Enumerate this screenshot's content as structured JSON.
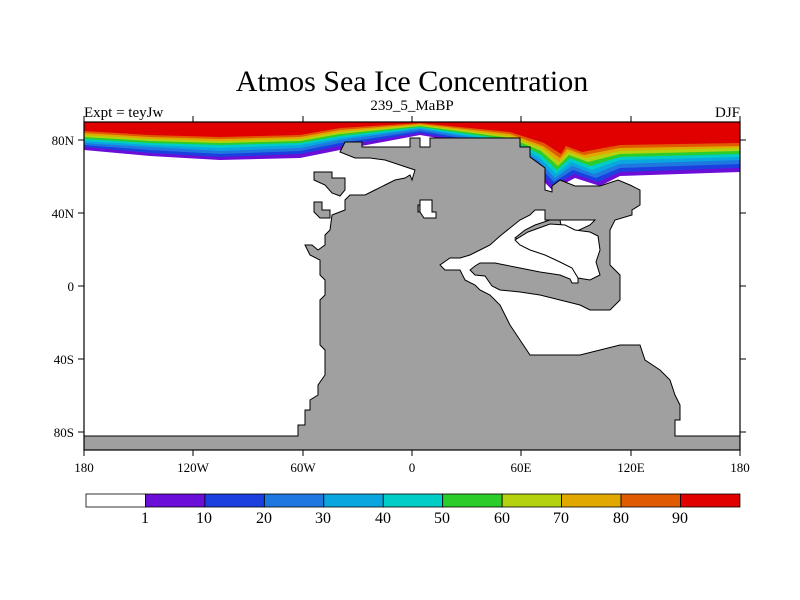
{
  "title": "Atmos Sea Ice Concentration",
  "left_label": "Expt = teyJw",
  "center_label": "239_5_MaBP",
  "right_label": "DJF",
  "x_ticks": [
    "180",
    "120W",
    "60W",
    "0",
    "60E",
    "120E",
    "180"
  ],
  "y_ticks": [
    "80N",
    "40N",
    "0",
    "40S",
    "80S"
  ],
  "colorbar": {
    "labels": [
      "1",
      "10",
      "20",
      "30",
      "40",
      "50",
      "60",
      "70",
      "80",
      "90"
    ],
    "colors": [
      "#ffffff",
      "#6a0ed8",
      "#1c3fe0",
      "#1e78e0",
      "#0aa6e0",
      "#00cdc6",
      "#2bcd2b",
      "#b4d30e",
      "#e0a800",
      "#e05a00",
      "#e00000"
    ]
  },
  "colors": {
    "land": "#a0a0a0",
    "ocean": "#ffffff",
    "ice_full": "#e00000"
  }
}
